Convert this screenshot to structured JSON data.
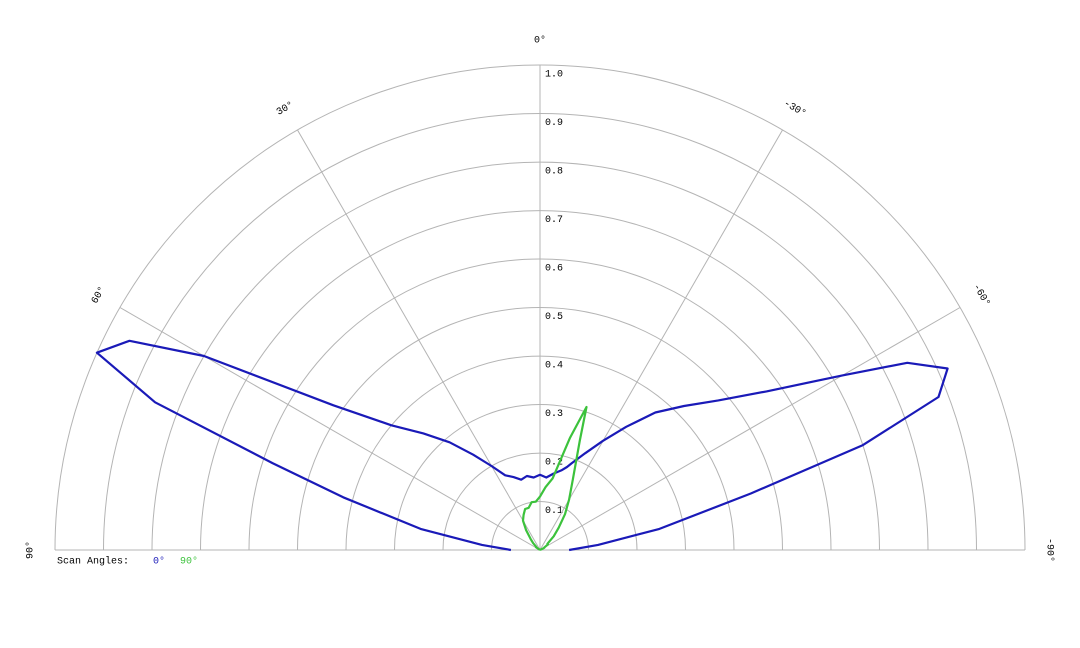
{
  "chart_data": {
    "type": "polar",
    "theta": [
      90,
      85,
      80,
      75,
      72,
      69,
      66,
      63,
      60,
      55,
      50,
      45,
      40,
      35,
      30,
      25,
      20,
      15,
      10,
      5,
      0,
      -5,
      -10,
      -15,
      -18,
      -20,
      -25,
      -30,
      -35,
      -40,
      -45,
      -50,
      -55,
      -60,
      -63,
      -66,
      -69,
      -72,
      -75,
      -80,
      -85,
      -90
    ],
    "series": [
      {
        "name": "0°",
        "color": "#1a1ab8",
        "values": [
          0.06,
          0.12,
          0.25,
          0.42,
          0.58,
          0.85,
          1.0,
          0.95,
          0.8,
          0.52,
          0.4,
          0.34,
          0.29,
          0.24,
          0.2,
          0.17,
          0.16,
          0.15,
          0.155,
          0.15,
          0.155,
          0.15,
          0.16,
          0.17,
          0.18,
          0.19,
          0.22,
          0.26,
          0.31,
          0.37,
          0.42,
          0.48,
          0.57,
          0.72,
          0.85,
          0.92,
          0.88,
          0.7,
          0.45,
          0.25,
          0.12,
          0.06
        ]
      },
      {
        "name": "90°",
        "color": "#3cc23c",
        "values": [
          0,
          0,
          0,
          0,
          0,
          0,
          0,
          0,
          0,
          0.01,
          0.01,
          0.02,
          0.03,
          0.05,
          0.07,
          0.08,
          0.09,
          0.09,
          0.1,
          0.1,
          0.11,
          0.13,
          0.15,
          0.24,
          0.31,
          0.24,
          0.16,
          0.12,
          0.09,
          0.06,
          0.04,
          0.02,
          0.02,
          0.01,
          0.01,
          0,
          0,
          0,
          0,
          0,
          0,
          0
        ]
      }
    ],
    "legend_title": "Scan Angles:",
    "rlim": [
      0,
      1
    ],
    "rticks": [
      0.1,
      0.2,
      0.3,
      0.4,
      0.5,
      0.6,
      0.7,
      0.8,
      0.9,
      {
        "value": 1,
        "label": "1.0"
      }
    ],
    "thetaticks": [
      {
        "value": 0,
        "label": "0°"
      },
      {
        "value": 30,
        "label": "30°"
      },
      {
        "value": 60,
        "label": "60°"
      },
      {
        "value": 90,
        "label": "90°"
      },
      {
        "value": -30,
        "label": "-30°"
      },
      {
        "value": -60,
        "label": "-60°"
      },
      {
        "value": -90,
        "label": "-90°"
      }
    ],
    "grid": true
  }
}
